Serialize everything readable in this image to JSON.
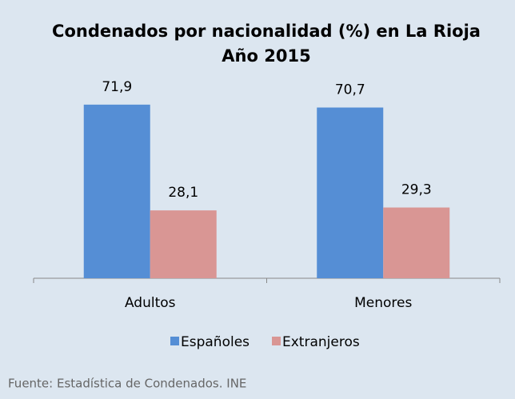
{
  "chart_data": {
    "type": "bar",
    "title": [
      "Condenados por nacionalidad (%) en La Rioja",
      "Año 2015"
    ],
    "categories": [
      "Adultos",
      "Menores"
    ],
    "series": [
      {
        "name": "Españoles",
        "color": "#558ed5",
        "values": [
          71.9,
          70.7
        ],
        "value_labels": [
          "71,9",
          "70,7"
        ]
      },
      {
        "name": "Extranjeros",
        "color": "#d99694",
        "values": [
          28.1,
          29.3
        ],
        "value_labels": [
          "28,1",
          "29,3"
        ]
      }
    ],
    "ylim": [
      0,
      100
    ],
    "source": "Fuente: Estadística de Condenados. INE"
  }
}
